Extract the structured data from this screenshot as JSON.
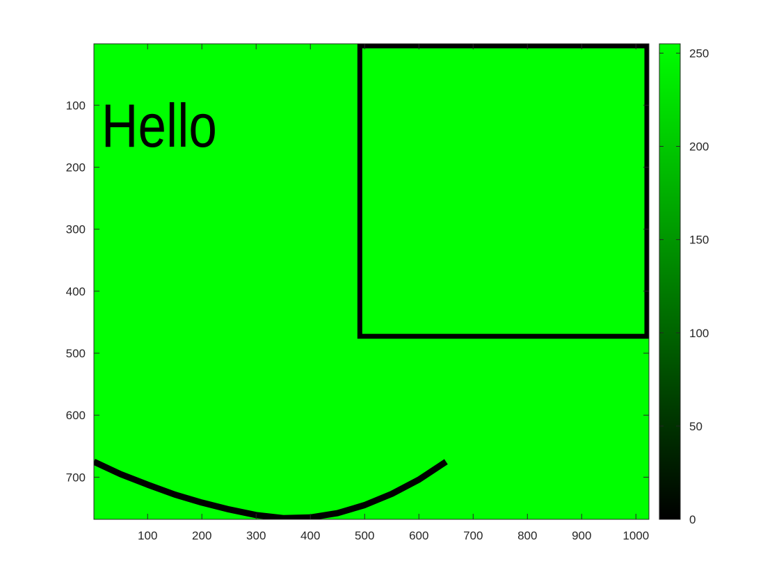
{
  "chart_data": {
    "type": "heatmap",
    "title": "",
    "xlabel": "",
    "ylabel": "",
    "xlim": [
      1,
      1024
    ],
    "ylim": [
      768,
      1
    ],
    "y_reversed": true,
    "x_ticks": [
      100,
      200,
      300,
      400,
      500,
      600,
      700,
      800,
      900,
      1000
    ],
    "y_ticks": [
      100,
      200,
      300,
      400,
      500,
      600,
      700
    ],
    "colormap": {
      "from": "#000000",
      "to": "#00ff00"
    },
    "background_value": 255,
    "background_color": "#00ff00",
    "ink_color": "#000000",
    "text_annotation": {
      "text": "Hello",
      "x": 15,
      "y": 90
    },
    "rectangle": {
      "x_min": 486,
      "x_max": 1024,
      "y_min": 1,
      "y_max": 475,
      "value": 0
    },
    "curve": {
      "value": 0,
      "points": [
        [
          1,
          675
        ],
        [
          50,
          695
        ],
        [
          100,
          712
        ],
        [
          150,
          728
        ],
        [
          200,
          741
        ],
        [
          250,
          752
        ],
        [
          300,
          761
        ],
        [
          350,
          766
        ],
        [
          400,
          765
        ],
        [
          450,
          758
        ],
        [
          500,
          745
        ],
        [
          550,
          727
        ],
        [
          600,
          704
        ],
        [
          650,
          675
        ]
      ]
    },
    "colorbar": {
      "limits": [
        0,
        255
      ],
      "ticks": [
        0,
        50,
        100,
        150,
        200,
        250
      ]
    }
  }
}
